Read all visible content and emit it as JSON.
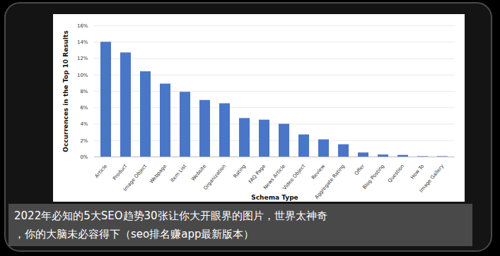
{
  "chart_data": {
    "type": "bar",
    "categories": [
      "Article",
      "Product",
      "Image Object",
      "Webpage",
      "Item List",
      "Website",
      "Organization",
      "Rating",
      "FAQ Page",
      "News Article",
      "Video Object",
      "Review",
      "Aggregate Rating",
      "Offer",
      "Blog Posting",
      "Question",
      "How To",
      "Image Gallery"
    ],
    "values": [
      14,
      12.7,
      10.4,
      8.9,
      7.9,
      6.9,
      6.5,
      4.7,
      4.5,
      4.0,
      2.7,
      2.1,
      1.5,
      0.5,
      0.25,
      0.2,
      0.05,
      0.05
    ],
    "color": "#4a76c8",
    "x_label": "Schema Type",
    "y_label": "Occurrences in the Top 10 Results",
    "ylim": [
      0,
      16
    ],
    "yticks": [
      {
        "value": 0,
        "label": "0%"
      },
      {
        "value": 2,
        "label": "2%"
      },
      {
        "value": 4,
        "label": "4%"
      },
      {
        "value": 6,
        "label": "6%"
      },
      {
        "value": 8,
        "label": "8%"
      },
      {
        "value": 10,
        "label": "10%"
      },
      {
        "value": 12,
        "label": "12%"
      },
      {
        "value": 14,
        "label": "14%"
      },
      {
        "value": 16,
        "label": "16%"
      }
    ],
    "grid": true,
    "caption": [
      "2022年必知的5大SEO趋势30张让你大开眼界的图片，世界太神奇",
      "，你的大脑未必容得下（seo排名赚app最新版本）"
    ]
  }
}
